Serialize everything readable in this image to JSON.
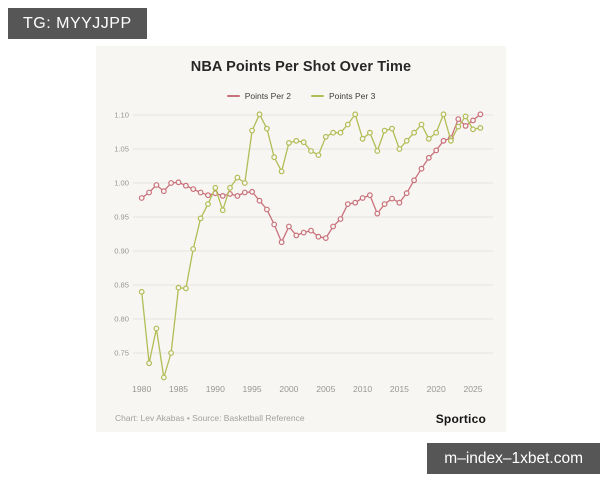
{
  "overlays": {
    "top_badge": "TG: MYYJJPP",
    "bottom_badge": "m–index–1xbet.com"
  },
  "card": {
    "title": "NBA Points Per Shot Over Time",
    "credit": "Chart: Lev Akabas • Source: Basketball Reference",
    "brand": "Sportico"
  },
  "colors": {
    "points_per_2": "#c9707a",
    "points_per_3": "#b2bd55",
    "badge_bg": "#565656",
    "card_bg": "#f7f6f3",
    "grid": "#e6e4e1",
    "tick_text": "#999792"
  },
  "chart_data": {
    "type": "line",
    "title": "NBA Points Per Shot Over Time",
    "xlabel": "",
    "ylabel": "",
    "grid": "horizontal",
    "legend_position": "top",
    "x": [
      1980,
      1981,
      1982,
      1983,
      1984,
      1985,
      1986,
      1987,
      1988,
      1989,
      1990,
      1991,
      1992,
      1993,
      1994,
      1995,
      1996,
      1997,
      1998,
      1999,
      2000,
      2001,
      2002,
      2003,
      2004,
      2005,
      2006,
      2007,
      2008,
      2009,
      2010,
      2011,
      2012,
      2013,
      2014,
      2015,
      2016,
      2017,
      2018,
      2019,
      2020,
      2021,
      2022,
      2023,
      2024,
      2025,
      2026
    ],
    "xticks": [
      1980,
      1985,
      1990,
      1995,
      2000,
      2005,
      2010,
      2015,
      2020,
      2025
    ],
    "yticks": [
      0.75,
      0.8,
      0.85,
      0.9,
      0.95,
      1.0,
      1.05,
      1.1
    ],
    "ylim": [
      0.7,
      1.12
    ],
    "series": [
      {
        "name": "Points Per 2",
        "color": "#c9707a",
        "values": [
          0.978,
          0.986,
          0.997,
          0.988,
          1.0,
          1.001,
          0.996,
          0.991,
          0.986,
          0.982,
          0.985,
          0.981,
          0.984,
          0.981,
          0.986,
          0.987,
          0.974,
          0.961,
          0.939,
          0.913,
          0.936,
          0.923,
          0.927,
          0.93,
          0.921,
          0.919,
          0.936,
          0.947,
          0.969,
          0.971,
          0.978,
          0.982,
          0.955,
          0.969,
          0.977,
          0.971,
          0.985,
          1.004,
          1.021,
          1.037,
          1.048,
          1.062,
          1.066,
          1.094,
          1.084,
          1.092,
          1.101
        ]
      },
      {
        "name": "Points Per 3",
        "color": "#b2bd55",
        "values": [
          0.84,
          0.735,
          0.786,
          0.714,
          0.75,
          0.846,
          0.845,
          0.903,
          0.948,
          0.969,
          0.993,
          0.96,
          0.993,
          1.008,
          1.0,
          1.077,
          1.101,
          1.08,
          1.038,
          1.017,
          1.059,
          1.062,
          1.06,
          1.047,
          1.041,
          1.068,
          1.074,
          1.074,
          1.086,
          1.101,
          1.065,
          1.074,
          1.047,
          1.077,
          1.08,
          1.05,
          1.062,
          1.074,
          1.086,
          1.065,
          1.074,
          1.101,
          1.062,
          1.083,
          1.098,
          1.079,
          1.081
        ]
      }
    ]
  }
}
